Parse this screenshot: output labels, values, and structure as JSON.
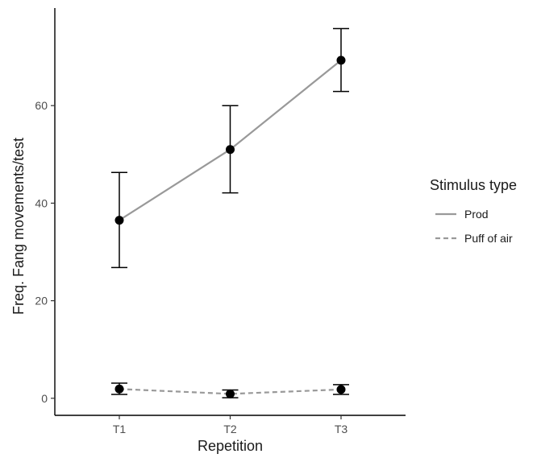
{
  "chart_data": {
    "type": "line",
    "categories": [
      "T1",
      "T2",
      "T3"
    ],
    "xlabel": "Repetition",
    "ylabel": "Freq. Fang movements/test",
    "ylim": [
      -3.5,
      80
    ],
    "yticks": [
      0,
      20,
      40,
      60
    ],
    "grid": false,
    "legend": {
      "title": "Stimulus type",
      "placement": "right"
    },
    "series": [
      {
        "name": "Prod",
        "values": [
          36.5,
          51,
          69.3
        ],
        "error_low": [
          26.8,
          42.1,
          62.9
        ],
        "error_high": [
          46.3,
          60,
          75.8
        ],
        "line_style": "solid",
        "color": "#999999"
      },
      {
        "name": "Puff of air",
        "values": [
          1.9,
          0.9,
          1.8
        ],
        "error_low": [
          0.8,
          0.1,
          0.8
        ],
        "error_high": [
          3.1,
          1.7,
          2.8
        ],
        "line_style": "dashed",
        "color": "#999999"
      }
    ],
    "point_color": "#000000"
  }
}
